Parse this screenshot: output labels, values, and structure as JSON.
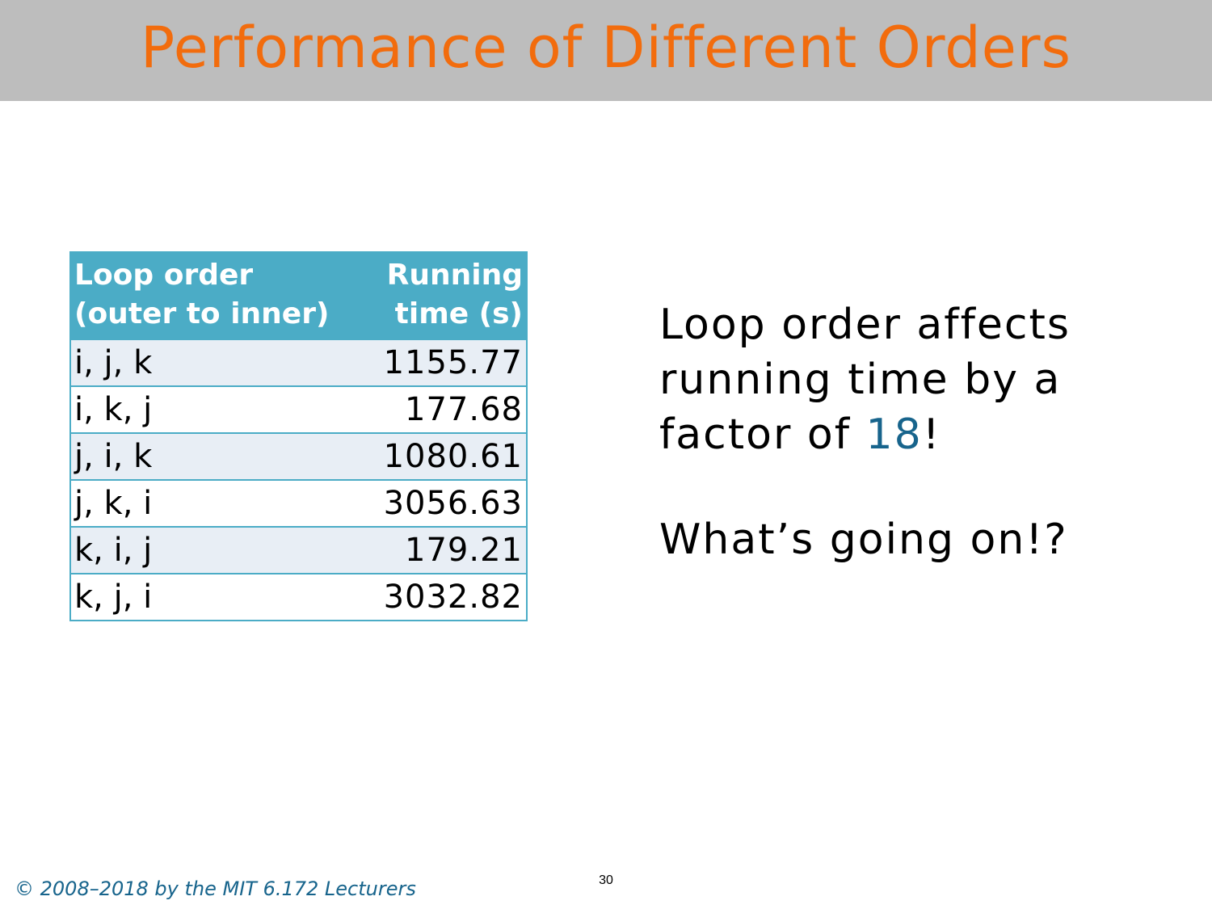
{
  "slide": {
    "title": "Performance of Different Orders",
    "table": {
      "headers": {
        "order_line1": "Loop order",
        "order_line2": "(outer to inner)",
        "time_line1": "Running",
        "time_line2": "time (s)"
      },
      "rows": [
        {
          "order": "i, j, k",
          "time": "1155.77"
        },
        {
          "order": "i, k, j",
          "time": "177.68"
        },
        {
          "order": "j, i, k",
          "time": "1080.61"
        },
        {
          "order": "j, k, i",
          "time": "3056.63"
        },
        {
          "order": "k, i, j",
          "time": "179.21"
        },
        {
          "order": "k, j, i",
          "time": "3032.82"
        }
      ]
    },
    "statement": {
      "prefix": "Loop order affects running time by a factor of ",
      "factor": "18",
      "suffix": "!"
    },
    "question": "What’s going on!?",
    "footer": {
      "copyright": "© 2008–2018 by the MIT 6.172 Lecturers",
      "page_number": "30"
    }
  },
  "colors": {
    "title": "#f26c0d",
    "title_bar": "#bdbdbd",
    "table_header": "#4bacc6",
    "table_row_alt": "#e8eef5",
    "accent_blue": "#17648c"
  }
}
